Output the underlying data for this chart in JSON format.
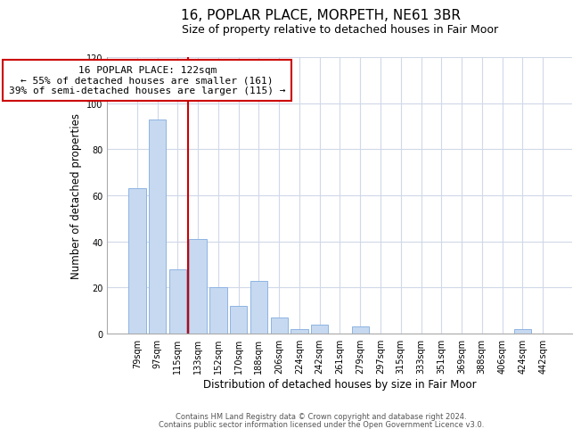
{
  "title": "16, POPLAR PLACE, MORPETH, NE61 3BR",
  "subtitle": "Size of property relative to detached houses in Fair Moor",
  "xlabel": "Distribution of detached houses by size in Fair Moor",
  "ylabel": "Number of detached properties",
  "bar_labels": [
    "79sqm",
    "97sqm",
    "115sqm",
    "133sqm",
    "152sqm",
    "170sqm",
    "188sqm",
    "206sqm",
    "224sqm",
    "242sqm",
    "261sqm",
    "279sqm",
    "297sqm",
    "315sqm",
    "333sqm",
    "351sqm",
    "369sqm",
    "388sqm",
    "406sqm",
    "424sqm",
    "442sqm"
  ],
  "bar_values": [
    63,
    93,
    28,
    41,
    20,
    12,
    23,
    7,
    2,
    4,
    0,
    3,
    0,
    0,
    0,
    0,
    0,
    0,
    0,
    2,
    0
  ],
  "bar_color": "#c6d9f0",
  "bar_edge_color": "#8eb4e3",
  "vline_color": "#cc0000",
  "annotation_line1": "16 POPLAR PLACE: 122sqm",
  "annotation_line2": "← 55% of detached houses are smaller (161)",
  "annotation_line3": "39% of semi-detached houses are larger (115) →",
  "annotation_box_facecolor": "#ffffff",
  "annotation_box_edgecolor": "#cc0000",
  "ylim": [
    0,
    120
  ],
  "yticks": [
    0,
    20,
    40,
    60,
    80,
    100,
    120
  ],
  "footer_line1": "Contains HM Land Registry data © Crown copyright and database right 2024.",
  "footer_line2": "Contains public sector information licensed under the Open Government Licence v3.0.",
  "background_color": "#ffffff",
  "grid_color": "#d0d8e8",
  "title_fontsize": 11,
  "subtitle_fontsize": 9,
  "axis_label_fontsize": 8.5,
  "tick_fontsize": 7,
  "annotation_fontsize": 8,
  "footer_fontsize": 6
}
